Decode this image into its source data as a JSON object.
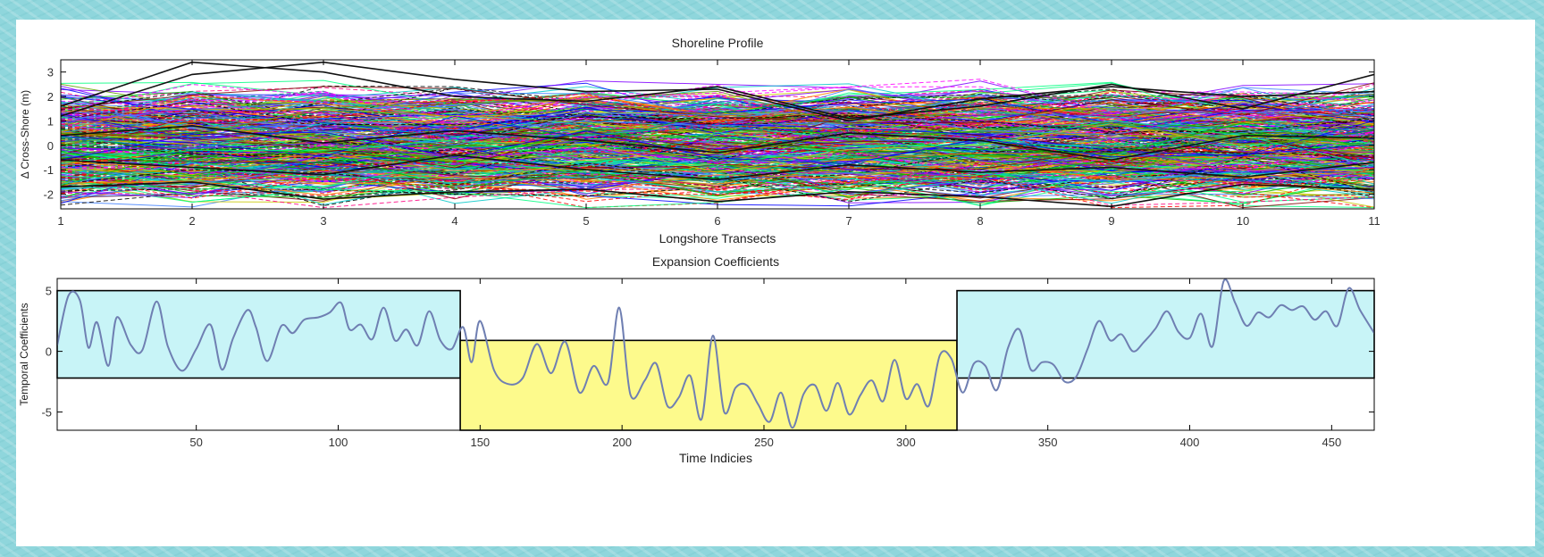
{
  "chart_data": [
    {
      "type": "line",
      "title": "Shoreline Profile",
      "xlabel": "Longshore Transects",
      "ylabel": "Δ Cross-Shore (m)",
      "xlim": [
        1,
        11
      ],
      "ylim": [
        -2.6,
        3.5
      ],
      "x": [
        1,
        2,
        3,
        4,
        5,
        6,
        7,
        8,
        9,
        10,
        11
      ],
      "x_ticks": [
        "1",
        "2",
        "3",
        "4",
        "5",
        "6",
        "7",
        "8",
        "9",
        "10",
        "11"
      ],
      "y_ticks": [
        "-2",
        "-1",
        "0",
        "1",
        "2",
        "3"
      ],
      "series_note_count": 460,
      "example_series": [
        {
          "values": [
            1.6,
            3.4,
            3.0,
            2.0,
            1.8,
            2.4,
            1.1,
            1.6,
            2.5,
            1.5,
            2.9
          ]
        },
        {
          "values": [
            1.2,
            2.9,
            3.4,
            2.7,
            2.2,
            2.3,
            1.0,
            1.9,
            2.4,
            2.0,
            2.2
          ]
        },
        {
          "values": [
            -1.7,
            -1.5,
            -2.2,
            -1.9,
            -1.8,
            -2.3,
            -1.9,
            -2.1,
            -2.5,
            -1.6,
            -1.8
          ]
        },
        {
          "values": [
            0.4,
            0.8,
            0.1,
            0.6,
            0.2,
            -0.3,
            0.5,
            0.2,
            -0.6,
            0.4,
            0.3
          ]
        },
        {
          "values": [
            -0.6,
            -0.9,
            -1.2,
            -0.4,
            -1.0,
            -1.4,
            -0.8,
            -1.1,
            -0.9,
            -1.3,
            -0.7
          ]
        }
      ]
    },
    {
      "type": "line",
      "title": "Expansion Coefficients",
      "xlabel": "Time Indicies",
      "ylabel": "Temporal Coefficients",
      "xlim": [
        1,
        465
      ],
      "ylim": [
        -6.5,
        6.0
      ],
      "x_ticks": [
        "50",
        "100",
        "150",
        "200",
        "250",
        "300",
        "350",
        "400",
        "450"
      ],
      "y_ticks": [
        "-5",
        "0",
        "5"
      ],
      "series": [
        {
          "x": [
            1,
            5,
            9,
            12,
            15,
            19,
            22,
            27,
            31,
            36,
            40,
            45,
            50,
            55,
            59,
            63,
            68,
            71,
            75,
            80,
            84,
            88,
            93,
            97,
            101,
            104,
            108,
            112,
            116,
            120,
            124,
            128,
            132,
            136,
            140,
            144,
            147,
            150,
            155,
            160,
            165,
            170,
            175,
            180,
            185,
            190,
            195,
            199,
            203,
            208,
            212,
            216,
            220,
            224,
            228,
            232,
            236,
            240,
            244,
            248,
            252,
            256,
            260,
            264,
            268,
            272,
            276,
            280,
            284,
            288,
            292,
            296,
            300,
            304,
            308,
            312,
            316,
            320,
            324,
            328,
            332,
            336,
            340,
            344,
            348,
            352,
            356,
            360,
            364,
            368,
            372,
            376,
            380,
            384,
            388,
            392,
            396,
            400,
            404,
            408,
            412,
            416,
            420,
            424,
            428,
            432,
            436,
            440,
            444,
            448,
            452,
            456,
            460,
            465
          ],
          "values": [
            0.5,
            4.6,
            4.2,
            0.3,
            2.4,
            -1.2,
            2.8,
            0.5,
            0.1,
            4.1,
            0.4,
            -1.6,
            0.2,
            2.2,
            -1.5,
            1.1,
            3.4,
            2.0,
            -0.8,
            2.1,
            1.5,
            2.6,
            2.8,
            3.2,
            4.0,
            1.8,
            2.2,
            1.0,
            3.6,
            0.9,
            1.8,
            0.5,
            3.3,
            0.9,
            0.2,
            2.0,
            -0.9,
            2.5,
            -1.6,
            -2.7,
            -2.2,
            0.6,
            -1.8,
            0.8,
            -3.4,
            -1.2,
            -2.6,
            3.6,
            -3.6,
            -2.4,
            -1.0,
            -4.5,
            -3.8,
            -2.0,
            -5.6,
            1.3,
            -5.0,
            -3.0,
            -2.8,
            -4.4,
            -5.8,
            -3.4,
            -6.3,
            -3.5,
            -2.8,
            -4.9,
            -2.6,
            -5.2,
            -3.6,
            -2.4,
            -4.1,
            -0.7,
            -3.9,
            -2.7,
            -4.5,
            -0.3,
            -0.6,
            -3.4,
            -1.0,
            -1.2,
            -3.2,
            0.3,
            1.8,
            -1.5,
            -0.9,
            -1.1,
            -2.5,
            -2.1,
            0.2,
            2.5,
            0.9,
            1.4,
            0.0,
            0.8,
            1.9,
            3.3,
            1.6,
            1.1,
            3.1,
            0.4,
            5.8,
            4.0,
            2.1,
            3.2,
            2.8,
            3.8,
            3.4,
            3.7,
            2.6,
            3.3,
            2.1,
            5.2,
            3.4,
            1.5
          ]
        }
      ],
      "highlights": [
        {
          "label": "cyan-region-left",
          "x": [
            1,
            143
          ],
          "y": [
            -2.2,
            5.0
          ],
          "color": "#c8f4f7"
        },
        {
          "label": "yellow-region",
          "x": [
            143,
            318
          ],
          "y": [
            -6.5,
            0.9
          ],
          "color": "#fdfa8c"
        },
        {
          "label": "cyan-region-right",
          "x": [
            318,
            465
          ],
          "y": [
            -2.2,
            5.0
          ],
          "color": "#c8f4f7"
        }
      ],
      "line_color": "#6f7fb2"
    }
  ]
}
